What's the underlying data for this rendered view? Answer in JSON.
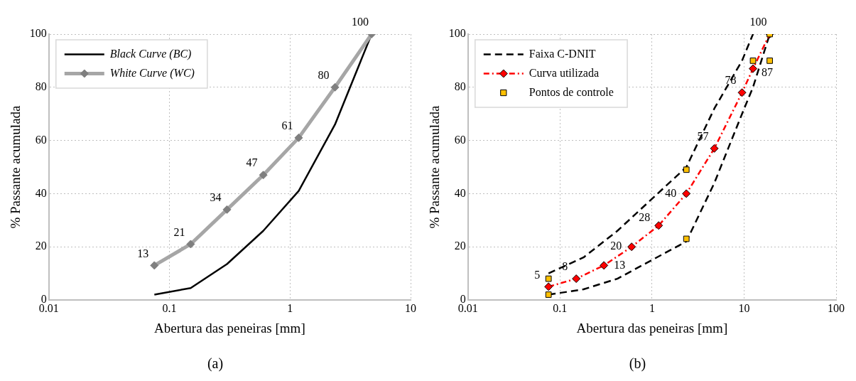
{
  "chart_data": [
    {
      "type": "line",
      "xlabel": "Abertura das peneiras [mm]",
      "ylabel": "% Passante acumulada",
      "log": "x",
      "xlim": [
        0.01,
        10
      ],
      "xticks": [
        0.01,
        0.1,
        1,
        10
      ],
      "ylim": [
        0,
        100
      ],
      "yticks": [
        0,
        20,
        40,
        60,
        80,
        100
      ],
      "grid": true,
      "legend": "top left",
      "annotations": [
        "(a)"
      ],
      "series": [
        {
          "name": "Black Curve (BC)",
          "type": "line",
          "color": "#000000",
          "marker": "none",
          "line_style": "solid",
          "x": [
            0.075,
            0.15,
            0.3,
            0.6,
            1.18,
            2.36,
            4.75
          ],
          "values": [
            2,
            4.5,
            13.5,
            26,
            41,
            66,
            100
          ]
        },
        {
          "name": "White Curve (WC)",
          "type": "line",
          "color": "#a6a6a6",
          "marker": "diamond",
          "line_style": "solid",
          "x": [
            0.075,
            0.15,
            0.3,
            0.6,
            1.18,
            2.36,
            4.75
          ],
          "values": [
            13,
            21,
            34,
            47,
            61,
            80,
            100
          ],
          "value_labels": [
            "13",
            "21",
            "34",
            "47",
            "61",
            "80",
            "100"
          ]
        }
      ]
    },
    {
      "type": "line",
      "xlabel": "Abertura das peneiras [mm]",
      "ylabel": "% Passante acumulada",
      "log": "x",
      "xlim": [
        0.01,
        100
      ],
      "xticks": [
        0.01,
        0.1,
        1,
        10,
        100
      ],
      "ylim": [
        0,
        100
      ],
      "yticks": [
        0,
        20,
        40,
        60,
        80,
        100
      ],
      "grid": true,
      "legend": "top left",
      "annotations": [
        "(b)"
      ],
      "series": [
        {
          "name": "Faixa C-DNIT",
          "type": "line",
          "color": "#000000",
          "marker": "none",
          "line_style": "dashed",
          "x": [
            0.075,
            0.18,
            0.42,
            2.36,
            4.75,
            9.5,
            12.5
          ],
          "values": [
            10,
            16,
            26,
            50,
            72,
            90,
            100
          ]
        },
        {
          "type": "line",
          "color": "#000000",
          "marker": "none",
          "line_style": "dashed",
          "x": [
            0.075,
            0.18,
            0.42,
            2.36,
            4.75,
            9.5,
            12.5,
            19
          ],
          "values": [
            2,
            4,
            8,
            22,
            44,
            70,
            80,
            100
          ]
        },
        {
          "name": "Curva utilizada",
          "type": "line",
          "color": "#ff0000",
          "marker": "diamond",
          "line_style": "dotted",
          "x": [
            0.075,
            0.15,
            0.3,
            0.6,
            1.18,
            2.36,
            4.75,
            9.5,
            12.5,
            19
          ],
          "values": [
            5,
            8,
            13,
            20,
            28,
            40,
            57,
            78,
            87,
            100
          ],
          "value_labels": [
            "5",
            "8",
            "13",
            "20",
            "28",
            "40",
            "57",
            "78",
            "87",
            "100"
          ]
        },
        {
          "name": "Pontos de controle",
          "type": "scatter",
          "color": "#ffc000",
          "marker": "square",
          "x": [
            0.075,
            0.075,
            2.36,
            2.36,
            12.5,
            19,
            19
          ],
          "values": [
            8,
            2,
            49,
            23,
            90,
            90,
            100
          ]
        }
      ]
    }
  ]
}
